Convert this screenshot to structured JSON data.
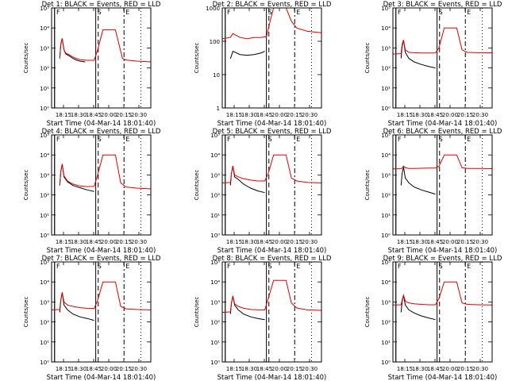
{
  "colors": {
    "events": "#000000",
    "lld": "#e00000",
    "axes": "#000000",
    "background": "#ffffff"
  },
  "chart_data": [
    {
      "type": "line",
      "title": "Det 1: BLACK = Events, RED = LLD",
      "ylabel": "Counts/sec",
      "xlabel": "Start Time (04-Mar-14 18:01:40)",
      "scale": "log",
      "ylim": [
        1,
        100000
      ],
      "yticklabels": [
        "10⁰",
        "10¹",
        "10²",
        "10³",
        "10⁴",
        "10⁵"
      ],
      "xlim": [
        18.0,
        20.8
      ],
      "xticklabels": [
        "18:15",
        "18:30",
        "18:45",
        "20:00",
        "20:15",
        "20:30"
      ],
      "marker_labels": [
        "F",
        "S",
        "E"
      ],
      "peak_lld": 8000,
      "series": [
        {
          "name": "BLACK = Events",
          "x": [
            18.23,
            18.26,
            18.3,
            18.35,
            18.4,
            18.5,
            18.6,
            18.7,
            18.8,
            18.95
          ],
          "y": [
            300,
            1500,
            3000,
            800,
            500,
            400,
            300,
            250,
            220,
            200
          ]
        },
        {
          "name": "RED = LLD",
          "x": [
            18.23,
            18.26,
            18.3,
            18.35,
            18.4,
            18.5,
            18.6,
            18.7,
            18.8,
            19.0,
            19.2,
            19.3,
            19.45,
            19.5,
            19.8,
            20.0,
            20.1,
            20.4,
            20.8
          ],
          "y": [
            300,
            1500,
            3000,
            800,
            550,
            450,
            350,
            300,
            260,
            240,
            240,
            800,
            8000,
            8000,
            8000,
            300,
            250,
            220,
            200
          ]
        }
      ]
    },
    {
      "type": "line",
      "title": "Det 2: BLACK = Events, RED = LLD",
      "ylabel": "Counts/sec",
      "xlabel": "Start Time (04-Mar-14 18:01:40)",
      "scale": "log",
      "ylim": [
        1,
        1000
      ],
      "yticklabels": [
        "1",
        "10",
        "100",
        "1000"
      ],
      "xlim": [
        18.0,
        20.8
      ],
      "xticklabels": [
        "18:15",
        "18:30",
        "18:45",
        "20:00",
        "20:15",
        "20:30"
      ],
      "marker_labels": [
        "F",
        "S",
        "E"
      ],
      "peak_lld": 1000,
      "series": [
        {
          "name": "BLACK = Events",
          "x": [
            18.23,
            18.3,
            18.5,
            18.7,
            18.9,
            19.1,
            19.2
          ],
          "y": [
            30,
            50,
            40,
            38,
            40,
            45,
            50
          ]
        },
        {
          "name": "RED = LLD",
          "x": [
            18.0,
            18.23,
            18.3,
            18.5,
            18.7,
            18.9,
            19.1,
            19.25,
            19.35,
            19.45,
            19.8,
            19.95,
            20.1,
            20.4,
            20.8
          ],
          "y": [
            120,
            130,
            170,
            130,
            120,
            130,
            130,
            140,
            400,
            1000,
            1000,
            400,
            250,
            200,
            180
          ]
        }
      ]
    },
    {
      "type": "line",
      "title": "Det 3: BLACK = Events, RED = LLD",
      "ylabel": "Counts/sec",
      "xlabel": "Start Time (04-Mar-14 18:01:40)",
      "scale": "log",
      "ylim": [
        1,
        100000
      ],
      "yticklabels": [
        "10⁰",
        "10¹",
        "10²",
        "10³",
        "10⁴",
        "10⁵"
      ],
      "xlim": [
        18.0,
        20.8
      ],
      "xticklabels": [
        "18:15",
        "18:30",
        "18:45",
        "20:00",
        "20:15",
        "20:30"
      ],
      "marker_labels": [
        "F",
        "S",
        "E"
      ],
      "peak_lld": 10000,
      "series": [
        {
          "name": "BLACK = Events",
          "x": [
            18.23,
            18.26,
            18.3,
            18.35,
            18.45,
            18.6,
            18.8,
            19.0,
            19.2
          ],
          "y": [
            300,
            1200,
            2500,
            600,
            300,
            200,
            150,
            120,
            100
          ]
        },
        {
          "name": "RED = LLD",
          "x": [
            18.0,
            18.23,
            18.26,
            18.3,
            18.35,
            18.45,
            18.6,
            18.8,
            19.0,
            19.2,
            19.3,
            19.45,
            19.8,
            19.95,
            20.1,
            20.4,
            20.8
          ],
          "y": [
            500,
            520,
            1500,
            2500,
            800,
            600,
            580,
            560,
            560,
            570,
            1000,
            10000,
            10000,
            800,
            600,
            580,
            570
          ]
        }
      ]
    },
    {
      "type": "line",
      "title": "Det 4: BLACK = Events, RED = LLD",
      "ylabel": "Counts/sec",
      "xlabel": "Start Time (04-Mar-14 18:01:40)",
      "scale": "log",
      "ylim": [
        1,
        100000
      ],
      "yticklabels": [
        "10⁰",
        "10¹",
        "10²",
        "10³",
        "10⁴",
        "10⁵"
      ],
      "xlim": [
        18.0,
        20.8
      ],
      "xticklabels": [
        "18:15",
        "18:30",
        "18:45",
        "20:00",
        "20:15",
        "20:30"
      ],
      "marker_labels": [
        "F",
        "S",
        "E"
      ],
      "peak_lld": 10000,
      "series": [
        {
          "name": "BLACK = Events",
          "x": [
            18.23,
            18.26,
            18.3,
            18.35,
            18.45,
            18.6,
            18.8,
            19.0,
            19.2
          ],
          "y": [
            300,
            1500,
            3500,
            800,
            450,
            300,
            230,
            180,
            150
          ]
        },
        {
          "name": "RED = LLD",
          "x": [
            18.23,
            18.26,
            18.3,
            18.35,
            18.45,
            18.6,
            18.8,
            19.0,
            19.2,
            19.3,
            19.45,
            19.8,
            19.95,
            20.1,
            20.4,
            20.8
          ],
          "y": [
            300,
            1500,
            3500,
            900,
            500,
            350,
            280,
            260,
            270,
            1000,
            10000,
            10000,
            400,
            250,
            220,
            200
          ]
        }
      ]
    },
    {
      "type": "line",
      "title": "Det 5: BLACK = Events, RED = LLD",
      "ylabel": "Counts/sec",
      "xlabel": "Start Time (04-Mar-14 18:01:40)",
      "scale": "log",
      "ylim": [
        1,
        100000
      ],
      "yticklabels": [
        "10⁰",
        "10¹",
        "10²",
        "10³",
        "10⁴",
        "10⁵"
      ],
      "xlim": [
        18.0,
        20.8
      ],
      "xticklabels": [
        "18:15",
        "18:30",
        "18:45",
        "20:00",
        "20:15",
        "20:30"
      ],
      "marker_labels": [
        "F",
        "S",
        "E"
      ],
      "peak_lld": 10000,
      "series": [
        {
          "name": "BLACK = Events",
          "x": [
            18.23,
            18.26,
            18.3,
            18.35,
            18.45,
            18.6,
            18.8,
            19.0,
            19.2
          ],
          "y": [
            300,
            1200,
            2800,
            800,
            600,
            350,
            220,
            160,
            130
          ]
        },
        {
          "name": "RED = LLD",
          "x": [
            18.0,
            18.23,
            18.26,
            18.3,
            18.35,
            18.45,
            18.6,
            18.8,
            19.0,
            19.2,
            19.3,
            19.45,
            19.8,
            19.95,
            20.1,
            20.4,
            20.8
          ],
          "y": [
            400,
            420,
            1200,
            2800,
            1000,
            800,
            650,
            550,
            500,
            500,
            1200,
            10000,
            10000,
            700,
            500,
            420,
            400
          ]
        }
      ]
    },
    {
      "type": "line",
      "title": "Det 6: BLACK = Events, RED = LLD",
      "ylabel": "Counts/sec",
      "xlabel": "Start Time (04-Mar-14 18:01:40)",
      "scale": "log",
      "ylim": [
        1,
        100000
      ],
      "yticklabels": [
        "10⁰",
        "10¹",
        "10²",
        "10³",
        "10⁴",
        "10⁵"
      ],
      "xlim": [
        18.0,
        20.8
      ],
      "xticklabels": [
        "18:15",
        "18:30",
        "18:45",
        "20:00",
        "20:15",
        "20:30"
      ],
      "marker_labels": [
        "F",
        "S",
        "E"
      ],
      "peak_lld": 10000,
      "series": [
        {
          "name": "BLACK = Events",
          "x": [
            18.23,
            18.26,
            18.3,
            18.35,
            18.45,
            18.6,
            18.8,
            19.0,
            19.2
          ],
          "y": [
            300,
            1200,
            2500,
            700,
            400,
            250,
            180,
            140,
            110
          ]
        },
        {
          "name": "RED = LLD",
          "x": [
            18.0,
            18.23,
            18.26,
            18.3,
            18.35,
            18.45,
            18.6,
            18.8,
            19.0,
            19.2,
            19.3,
            19.45,
            19.8,
            19.95,
            20.1,
            20.4,
            20.8
          ],
          "y": [
            2000,
            2050,
            2200,
            2800,
            2300,
            2100,
            2100,
            2150,
            2200,
            2200,
            2700,
            10000,
            10000,
            2300,
            2100,
            2100,
            2050
          ]
        }
      ]
    },
    {
      "type": "line",
      "title": "Det 7: BLACK = Events, RED = LLD",
      "ylabel": "Counts/sec",
      "xlabel": "Start Time (04-Mar-14 18:01:40)",
      "scale": "log",
      "ylim": [
        1,
        100000
      ],
      "yticklabels": [
        "10⁰",
        "10¹",
        "10²",
        "10³",
        "10⁴",
        "10⁵"
      ],
      "xlim": [
        18.0,
        20.8
      ],
      "xticklabels": [
        "18:15",
        "18:30",
        "18:45",
        "20:00",
        "20:15",
        "20:30"
      ],
      "marker_labels": [
        "F",
        "S",
        "E"
      ],
      "peak_lld": 10000,
      "series": [
        {
          "name": "BLACK = Events",
          "x": [
            18.23,
            18.26,
            18.3,
            18.35,
            18.45,
            18.6,
            18.8,
            19.0,
            19.2
          ],
          "y": [
            300,
            1200,
            3000,
            700,
            400,
            250,
            180,
            150,
            120
          ]
        },
        {
          "name": "RED = LLD",
          "x": [
            18.0,
            18.23,
            18.26,
            18.3,
            18.35,
            18.45,
            18.6,
            18.8,
            19.0,
            19.2,
            19.3,
            19.45,
            19.8,
            19.95,
            20.1,
            20.4,
            20.8
          ],
          "y": [
            400,
            420,
            1200,
            3000,
            1000,
            700,
            600,
            520,
            480,
            470,
            1200,
            10000,
            10000,
            600,
            450,
            420,
            400
          ]
        }
      ]
    },
    {
      "type": "line",
      "title": "Det 8: BLACK = Events, RED = LLD",
      "ylabel": "Counts/sec",
      "xlabel": "Start Time (04-Mar-14 18:01:40)",
      "scale": "log",
      "ylim": [
        1,
        100000
      ],
      "yticklabels": [
        "10⁰",
        "10¹",
        "10²",
        "10³",
        "10⁴",
        "10⁵"
      ],
      "xlim": [
        18.0,
        20.8
      ],
      "xticklabels": [
        "18:15",
        "18:30",
        "18:45",
        "20:00",
        "20:15",
        "20:30"
      ],
      "marker_labels": [
        "F",
        "S",
        "E"
      ],
      "peak_lld": 12000,
      "series": [
        {
          "name": "BLACK = Events",
          "x": [
            18.23,
            18.26,
            18.3,
            18.35,
            18.45,
            18.6,
            18.8,
            19.0,
            19.2
          ],
          "y": [
            250,
            900,
            2000,
            700,
            400,
            250,
            180,
            150,
            130
          ]
        },
        {
          "name": "RED = LLD",
          "x": [
            18.0,
            18.23,
            18.26,
            18.3,
            18.35,
            18.45,
            18.6,
            18.8,
            19.0,
            19.2,
            19.3,
            19.45,
            19.8,
            19.95,
            20.1,
            20.4,
            20.8
          ],
          "y": [
            300,
            320,
            900,
            2000,
            800,
            600,
            480,
            420,
            400,
            400,
            1500,
            12000,
            12000,
            900,
            500,
            400,
            380
          ]
        }
      ]
    },
    {
      "type": "line",
      "title": "Det 9: BLACK = Events, RED = LLD",
      "ylabel": "Counts/sec",
      "xlabel": "Start Time (04-Mar-14 18:01:40)",
      "scale": "log",
      "ylim": [
        1,
        100000
      ],
      "yticklabels": [
        "10⁰",
        "10¹",
        "10²",
        "10³",
        "10⁴",
        "10⁵"
      ],
      "xlim": [
        18.0,
        20.8
      ],
      "xticklabels": [
        "18:15",
        "18:30",
        "18:45",
        "20:00",
        "20:15",
        "20:30"
      ],
      "marker_labels": [
        "F",
        "S",
        "E"
      ],
      "peak_lld": 10000,
      "series": [
        {
          "name": "BLACK = Events",
          "x": [
            18.23,
            18.26,
            18.3,
            18.35,
            18.45,
            18.6,
            18.8,
            19.0,
            19.2
          ],
          "y": [
            300,
            1000,
            2200,
            700,
            400,
            280,
            200,
            160,
            130
          ]
        },
        {
          "name": "RED = LLD",
          "x": [
            18.0,
            18.23,
            18.26,
            18.3,
            18.35,
            18.45,
            18.6,
            18.8,
            19.0,
            19.2,
            19.3,
            19.45,
            19.8,
            19.95,
            20.1,
            20.4,
            20.8
          ],
          "y": [
            700,
            720,
            1200,
            2200,
            1100,
            900,
            800,
            750,
            720,
            720,
            1500,
            10000,
            10000,
            900,
            750,
            720,
            700
          ]
        }
      ]
    }
  ]
}
